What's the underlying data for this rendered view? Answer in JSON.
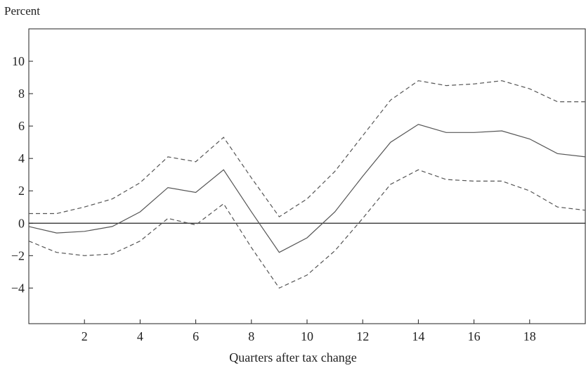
{
  "chart_data": {
    "type": "line",
    "title": "",
    "ylabel": "Percent",
    "xlabel": "Quarters after tax change",
    "xlim": [
      0,
      20
    ],
    "ylim": [
      -6.2,
      12
    ],
    "xticks": [
      2,
      4,
      6,
      8,
      10,
      12,
      14,
      16,
      18
    ],
    "yticks": [
      -4,
      -2,
      0,
      2,
      4,
      6,
      8,
      10
    ],
    "zero_line": true,
    "grid": false,
    "legend": "none",
    "x": [
      0,
      1,
      2,
      3,
      4,
      5,
      6,
      7,
      8,
      9,
      10,
      11,
      12,
      13,
      14,
      15,
      16,
      17,
      18,
      19,
      20
    ],
    "series": [
      {
        "style": "solid",
        "color": "#555555",
        "values": [
          -0.2,
          -0.6,
          -0.5,
          -0.2,
          0.7,
          2.2,
          1.9,
          3.3,
          0.7,
          -1.8,
          -0.9,
          0.7,
          2.9,
          5.0,
          6.1,
          5.6,
          5.6,
          5.7,
          5.2,
          4.3,
          4.1
        ]
      },
      {
        "style": "dashed",
        "color": "#555555",
        "values": [
          0.6,
          0.6,
          1.0,
          1.5,
          2.5,
          4.1,
          3.8,
          5.3,
          2.8,
          0.4,
          1.5,
          3.2,
          5.4,
          7.6,
          8.8,
          8.5,
          8.6,
          8.8,
          8.3,
          7.5,
          7.5
        ]
      },
      {
        "style": "dashed",
        "color": "#555555",
        "values": [
          -1.1,
          -1.8,
          -2.0,
          -1.9,
          -1.1,
          0.3,
          -0.1,
          1.2,
          -1.5,
          -4.0,
          -3.2,
          -1.7,
          0.3,
          2.4,
          3.3,
          2.7,
          2.6,
          2.6,
          2.0,
          1.0,
          0.8
        ]
      }
    ]
  }
}
